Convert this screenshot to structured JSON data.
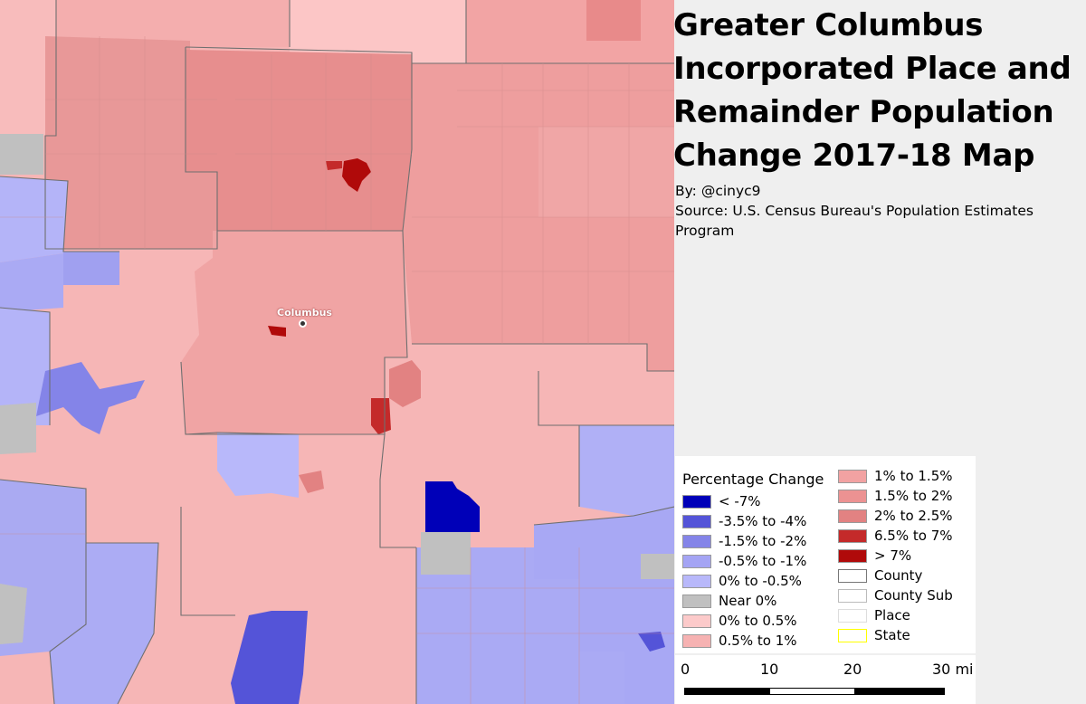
{
  "title": "Greater Columbus Incorporated Place and Remainder Population Change 2017-18 Map",
  "byline": "By: @cinyc9",
  "source": "Source: U.S. Census Bureau's Population Estimates Program",
  "map": {
    "city_label": "Columbus",
    "city_marker_icon": "city-dot-icon"
  },
  "legend": {
    "title": "Percentage Change",
    "classes": [
      {
        "label": "< -7%",
        "color": "#0000b8"
      },
      {
        "label": "-3.5% to -4%",
        "color": "#5454d8"
      },
      {
        "label": "-1.5% to -2%",
        "color": "#8484e8"
      },
      {
        "label": "-0.5% to -1%",
        "color": "#a4a4f4"
      },
      {
        "label": "0% to -0.5%",
        "color": "#b8b8fa"
      },
      {
        "label": "Near 0%",
        "color": "#c0c0c0"
      },
      {
        "label": "0% to 0.5%",
        "color": "#fccaca"
      },
      {
        "label": "0.5% to 1%",
        "color": "#f6b2b2"
      },
      {
        "label": "1% to 1.5%",
        "color": "#f2a2a2"
      },
      {
        "label": "1.5% to 2%",
        "color": "#ec9292"
      },
      {
        "label": "2% to 2.5%",
        "color": "#e28282"
      },
      {
        "label": "6.5% to 7%",
        "color": "#c42a2a"
      },
      {
        "label": "> 7%",
        "color": "#b00a0a"
      }
    ],
    "boundaries": [
      {
        "label": "County",
        "color": "#777777"
      },
      {
        "label": "County Sub",
        "color": "#bbbbbb"
      },
      {
        "label": "Place",
        "color": "#dddddd"
      },
      {
        "label": "State",
        "color": "#ffff00"
      }
    ]
  },
  "scalebar": {
    "labels": [
      "0",
      "10",
      "20",
      "30 mi"
    ]
  }
}
